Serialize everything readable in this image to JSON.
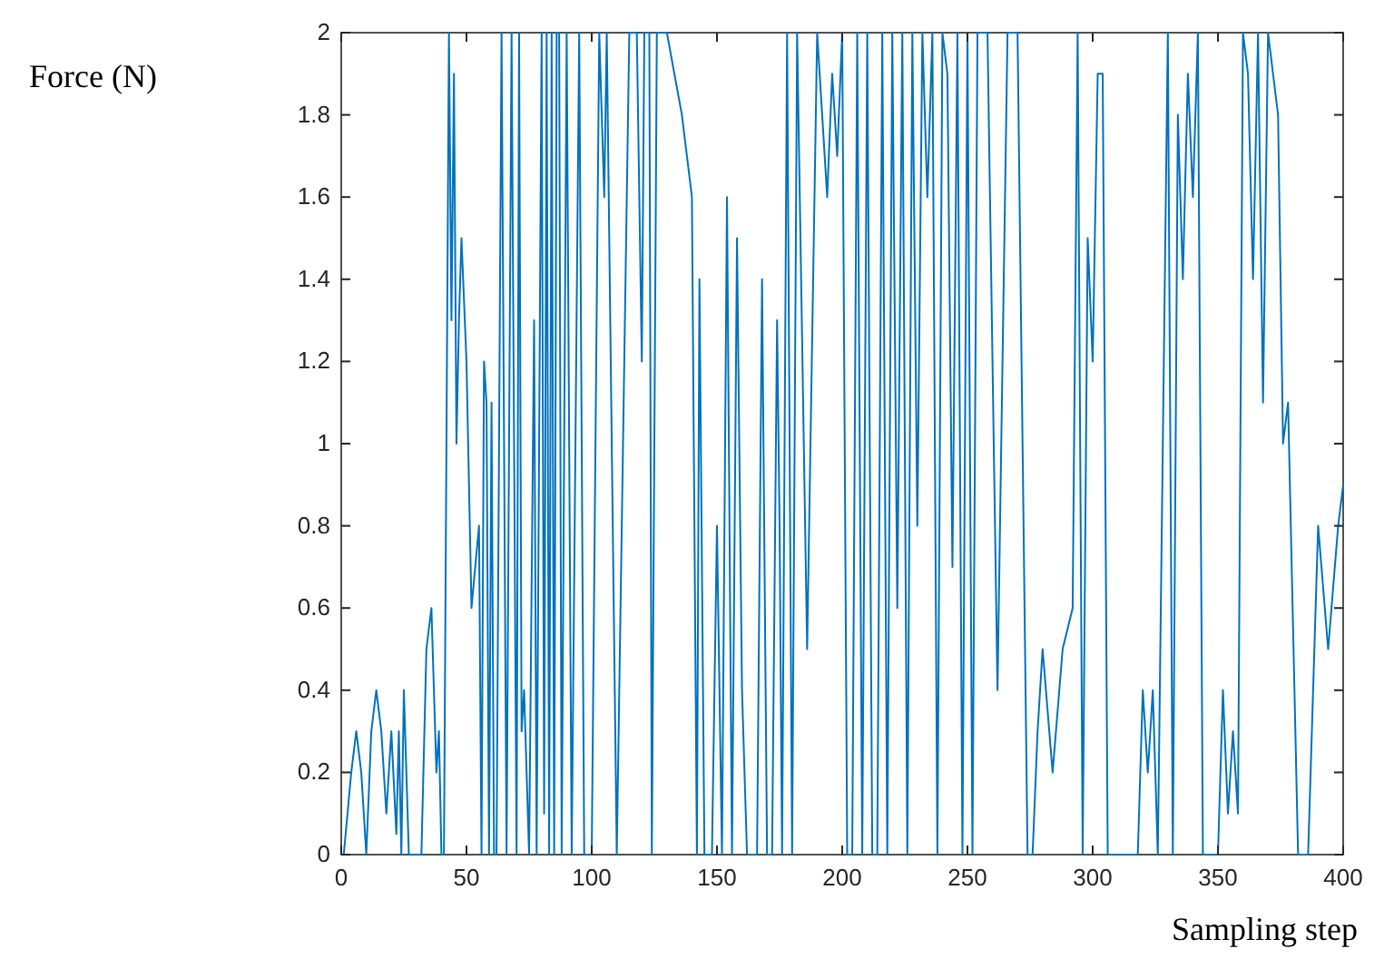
{
  "chart_data": {
    "type": "line",
    "xlabel": "Sampling step",
    "ylabel": "Force (N)",
    "xlim": [
      0,
      400
    ],
    "ylim": [
      0,
      2
    ],
    "xticks": [
      0,
      50,
      100,
      150,
      200,
      250,
      300,
      350,
      400
    ],
    "yticks": [
      0,
      0.2,
      0.4,
      0.6,
      0.8,
      {
        "value": 1,
        "label": "1"
      },
      1.2,
      1.4,
      1.6,
      1.8,
      2
    ],
    "grid": false,
    "series": [
      {
        "color": "#0072bd",
        "x": [
          1,
          4,
          6,
          8,
          10,
          12,
          14,
          16,
          18,
          20,
          22,
          23,
          24,
          25,
          27,
          28,
          32,
          34,
          36,
          38,
          39,
          40,
          41,
          43,
          44,
          45,
          46,
          47,
          48,
          50,
          52,
          55,
          56,
          57,
          58,
          59,
          60,
          61,
          62,
          64,
          66,
          68,
          70,
          71,
          72,
          73,
          74,
          75,
          77,
          78,
          80,
          81,
          82,
          83,
          84,
          85,
          86,
          87,
          88,
          90,
          92,
          95,
          97,
          99,
          100,
          103,
          105,
          106,
          110,
          115,
          118,
          120,
          121,
          123,
          124,
          126,
          128,
          130,
          136,
          140,
          142,
          143,
          145,
          146,
          148,
          150,
          152,
          154,
          156,
          158,
          160,
          162,
          164,
          166,
          168,
          170,
          172,
          174,
          175,
          176,
          178,
          180,
          182,
          186,
          190,
          192,
          194,
          196,
          198,
          200,
          202,
          204,
          206,
          208,
          210,
          212,
          214,
          216,
          218,
          220,
          222,
          224,
          226,
          228,
          230,
          232,
          234,
          236,
          238,
          240,
          242,
          244,
          246,
          248,
          250,
          252,
          254,
          256,
          258,
          262,
          266,
          270,
          274,
          276,
          278,
          280,
          284,
          288,
          292,
          294,
          296,
          298,
          300,
          302,
          304,
          306,
          310,
          316,
          318,
          320,
          322,
          324,
          326,
          330,
          332,
          334,
          336,
          338,
          340,
          342,
          344,
          346,
          348,
          350,
          352,
          354,
          356,
          358,
          360,
          362,
          364,
          366,
          368,
          370,
          372,
          374,
          376,
          378,
          382,
          386,
          390,
          394,
          398,
          400
        ],
        "values": [
          0,
          0.2,
          0.3,
          0.2,
          0,
          0.3,
          0.4,
          0.3,
          0.1,
          0.3,
          0.05,
          0.3,
          0,
          0.4,
          0,
          0,
          0,
          0.5,
          0.6,
          0.2,
          0.3,
          0,
          0,
          2,
          1.3,
          1.9,
          1,
          1.3,
          1.5,
          1.2,
          0.6,
          0.8,
          0,
          1.2,
          1.1,
          0,
          1.1,
          0,
          0,
          2,
          0,
          2,
          0,
          2,
          0.3,
          0.4,
          0.2,
          0,
          1.3,
          0,
          2,
          0.1,
          2,
          0,
          2,
          0,
          2,
          2,
          0,
          2,
          0,
          2,
          0,
          0,
          0,
          2,
          1.6,
          2,
          0,
          2,
          2,
          1.2,
          2,
          2,
          0,
          2,
          2,
          2,
          1.8,
          1.6,
          0,
          1.4,
          0,
          0,
          0,
          0.8,
          0,
          1.6,
          0,
          1.5,
          0.4,
          0,
          0,
          0,
          1.4,
          0,
          0,
          1.3,
          0.8,
          0,
          2,
          0,
          2,
          0.5,
          2,
          1.8,
          1.6,
          1.9,
          1.7,
          2,
          0,
          0,
          2,
          0,
          2,
          0,
          0,
          2,
          0,
          2,
          0.6,
          2,
          0,
          2,
          0.8,
          2,
          1.6,
          2,
          0,
          2,
          1.9,
          0.7,
          2,
          0,
          2,
          0,
          2,
          2,
          2,
          0.4,
          2,
          2,
          0,
          0,
          0.3,
          0.5,
          0.2,
          0.5,
          0.6,
          2,
          0,
          1.5,
          1.2,
          1.9,
          1.9,
          0,
          0,
          0,
          0,
          0.4,
          0.2,
          0.4,
          0,
          2,
          0,
          1.8,
          1.4,
          1.9,
          1.6,
          2,
          0,
          0,
          0,
          0,
          0.4,
          0.1,
          0.3,
          0.1,
          2,
          1.9,
          1.4,
          2,
          1.1,
          2,
          1.9,
          1.8,
          1,
          1.1,
          0,
          0,
          0.8,
          0.5,
          0.8,
          0.9
        ]
      }
    ]
  }
}
